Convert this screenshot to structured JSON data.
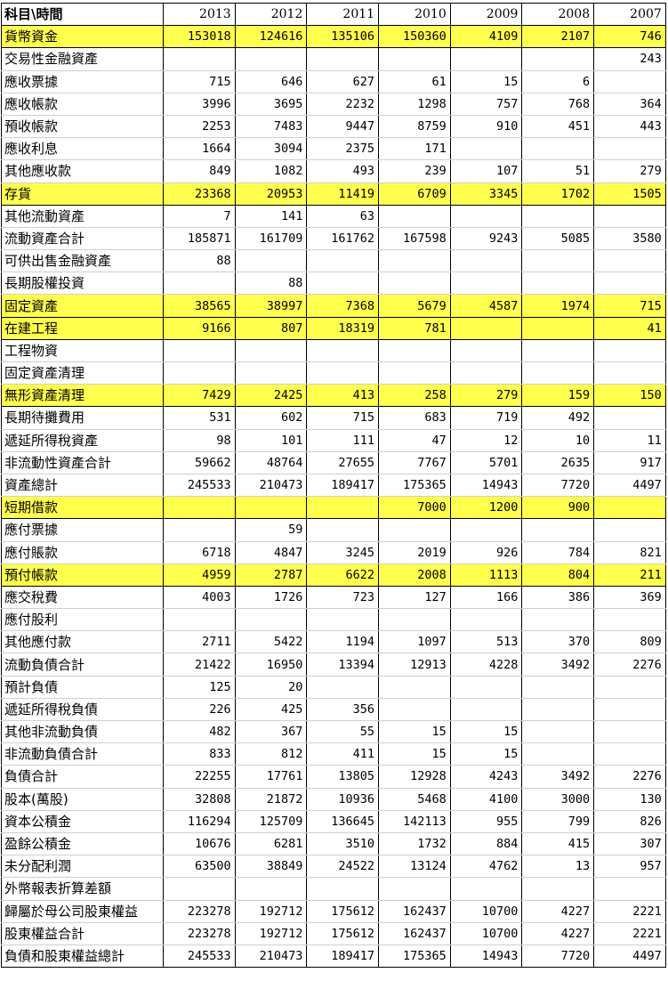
{
  "header": [
    "科目\\時間",
    "2013",
    "2012",
    "2011",
    "2010",
    "2009",
    "2008",
    "2007"
  ],
  "rows": [
    {
      "label": "貨幣資金",
      "hl": true,
      "v": [
        "153018",
        "124616",
        "135106",
        "150360",
        "4109",
        "2107",
        "746"
      ]
    },
    {
      "label": "交易性金融資產",
      "hl": false,
      "v": [
        "",
        "",
        "",
        "",
        "",
        "",
        "243"
      ]
    },
    {
      "label": "應收票據",
      "hl": false,
      "v": [
        "715",
        "646",
        "627",
        "61",
        "15",
        "6",
        ""
      ]
    },
    {
      "label": "應收帳款",
      "hl": false,
      "v": [
        "3996",
        "3695",
        "2232",
        "1298",
        "757",
        "768",
        "364"
      ]
    },
    {
      "label": "預收帳款",
      "hl": false,
      "v": [
        "2253",
        "7483",
        "9447",
        "8759",
        "910",
        "451",
        "443"
      ]
    },
    {
      "label": "應收利息",
      "hl": false,
      "v": [
        "1664",
        "3094",
        "2375",
        "171",
        "",
        "",
        ""
      ]
    },
    {
      "label": "其他應收款",
      "hl": false,
      "v": [
        "849",
        "1082",
        "493",
        "239",
        "107",
        "51",
        "279"
      ]
    },
    {
      "label": "存貨",
      "hl": true,
      "v": [
        "23368",
        "20953",
        "11419",
        "6709",
        "3345",
        "1702",
        "1505"
      ]
    },
    {
      "label": "其他流動資產",
      "hl": false,
      "v": [
        "7",
        "141",
        "63",
        "",
        "",
        "",
        ""
      ]
    },
    {
      "label": "流動資產合計",
      "hl": false,
      "v": [
        "185871",
        "161709",
        "161762",
        "167598",
        "9243",
        "5085",
        "3580"
      ]
    },
    {
      "label": "可供出售金融資產",
      "hl": false,
      "v": [
        "88",
        "",
        "",
        "",
        "",
        "",
        ""
      ]
    },
    {
      "label": "長期股權投資",
      "hl": false,
      "v": [
        "",
        "88",
        "",
        "",
        "",
        "",
        ""
      ]
    },
    {
      "label": "固定資產",
      "hl": true,
      "v": [
        "38565",
        "38997",
        "7368",
        "5679",
        "4587",
        "1974",
        "715"
      ]
    },
    {
      "label": "在建工程",
      "hl": true,
      "v": [
        "9166",
        "807",
        "18319",
        "781",
        "",
        "",
        "41"
      ]
    },
    {
      "label": "工程物資",
      "hl": false,
      "v": [
        "",
        "",
        "",
        "",
        "",
        "",
        ""
      ]
    },
    {
      "label": "固定資產清理",
      "hl": false,
      "v": [
        "",
        "",
        "",
        "",
        "",
        "",
        ""
      ]
    },
    {
      "label": "無形資產清理",
      "hl": true,
      "v": [
        "7429",
        "2425",
        "413",
        "258",
        "279",
        "159",
        "150"
      ]
    },
    {
      "label": "長期待攤費用",
      "hl": false,
      "v": [
        "531",
        "602",
        "715",
        "683",
        "719",
        "492",
        ""
      ]
    },
    {
      "label": "遞延所得稅資產",
      "hl": false,
      "v": [
        "98",
        "101",
        "111",
        "47",
        "12",
        "10",
        "11"
      ]
    },
    {
      "label": "非流動性資產合計",
      "hl": false,
      "v": [
        "59662",
        "48764",
        "27655",
        "7767",
        "5701",
        "2635",
        "917"
      ]
    },
    {
      "label": "資產總計",
      "hl": false,
      "v": [
        "245533",
        "210473",
        "189417",
        "175365",
        "14943",
        "7720",
        "4497"
      ]
    },
    {
      "label": "短期借款",
      "hl": true,
      "v": [
        "",
        "",
        "",
        "7000",
        "1200",
        "900",
        ""
      ]
    },
    {
      "label": "應付票據",
      "hl": false,
      "v": [
        "",
        "59",
        "",
        "",
        "",
        "",
        ""
      ]
    },
    {
      "label": "應付賬款",
      "hl": false,
      "v": [
        "6718",
        "4847",
        "3245",
        "2019",
        "926",
        "784",
        "821"
      ]
    },
    {
      "label": "預付帳款",
      "hl": true,
      "v": [
        "4959",
        "2787",
        "6622",
        "2008",
        "1113",
        "804",
        "211"
      ]
    },
    {
      "label": "應交稅費",
      "hl": false,
      "v": [
        "4003",
        "1726",
        "723",
        "127",
        "166",
        "386",
        "369"
      ]
    },
    {
      "label": "應付股利",
      "hl": false,
      "v": [
        "",
        "",
        "",
        "",
        "",
        "",
        ""
      ]
    },
    {
      "label": "其他應付款",
      "hl": false,
      "v": [
        "2711",
        "5422",
        "1194",
        "1097",
        "513",
        "370",
        "809"
      ]
    },
    {
      "label": "流動負債合計",
      "hl": false,
      "v": [
        "21422",
        "16950",
        "13394",
        "12913",
        "4228",
        "3492",
        "2276"
      ]
    },
    {
      "label": "預計負債",
      "hl": false,
      "v": [
        "125",
        "20",
        "",
        "",
        "",
        "",
        ""
      ]
    },
    {
      "label": "遞延所得稅負債",
      "hl": false,
      "v": [
        "226",
        "425",
        "356",
        "",
        "",
        "",
        ""
      ]
    },
    {
      "label": "其他非流動負債",
      "hl": false,
      "v": [
        "482",
        "367",
        "55",
        "15",
        "15",
        "",
        ""
      ]
    },
    {
      "label": "非流動負債合計",
      "hl": false,
      "v": [
        "833",
        "812",
        "411",
        "15",
        "15",
        "",
        ""
      ]
    },
    {
      "label": "負債合計",
      "hl": false,
      "v": [
        "22255",
        "17761",
        "13805",
        "12928",
        "4243",
        "3492",
        "2276"
      ]
    },
    {
      "label": "股本(萬股)",
      "hl": false,
      "v": [
        "32808",
        "21872",
        "10936",
        "5468",
        "4100",
        "3000",
        "130"
      ]
    },
    {
      "label": "資本公積金",
      "hl": false,
      "v": [
        "116294",
        "125709",
        "136645",
        "142113",
        "955",
        "799",
        "826"
      ]
    },
    {
      "label": "盈餘公積金",
      "hl": false,
      "v": [
        "10676",
        "6281",
        "3510",
        "1732",
        "884",
        "415",
        "307"
      ]
    },
    {
      "label": "未分配利潤",
      "hl": false,
      "v": [
        "63500",
        "38849",
        "24522",
        "13124",
        "4762",
        "13",
        "957"
      ]
    },
    {
      "label": "外幣報表折算差額",
      "hl": false,
      "v": [
        "",
        "",
        "",
        "",
        "",
        "",
        ""
      ]
    },
    {
      "label": "歸屬於母公司股東權益",
      "hl": false,
      "v": [
        "223278",
        "192712",
        "175612",
        "162437",
        "10700",
        "4227",
        "2221"
      ]
    },
    {
      "label": "股東權益合計",
      "hl": false,
      "v": [
        "223278",
        "192712",
        "175612",
        "162437",
        "10700",
        "4227",
        "2221"
      ]
    },
    {
      "label": "負債和股東權益總計",
      "hl": false,
      "v": [
        "245533",
        "210473",
        "189417",
        "175365",
        "14943",
        "7720",
        "4497"
      ]
    }
  ],
  "highlight_color": "#ffff4d"
}
